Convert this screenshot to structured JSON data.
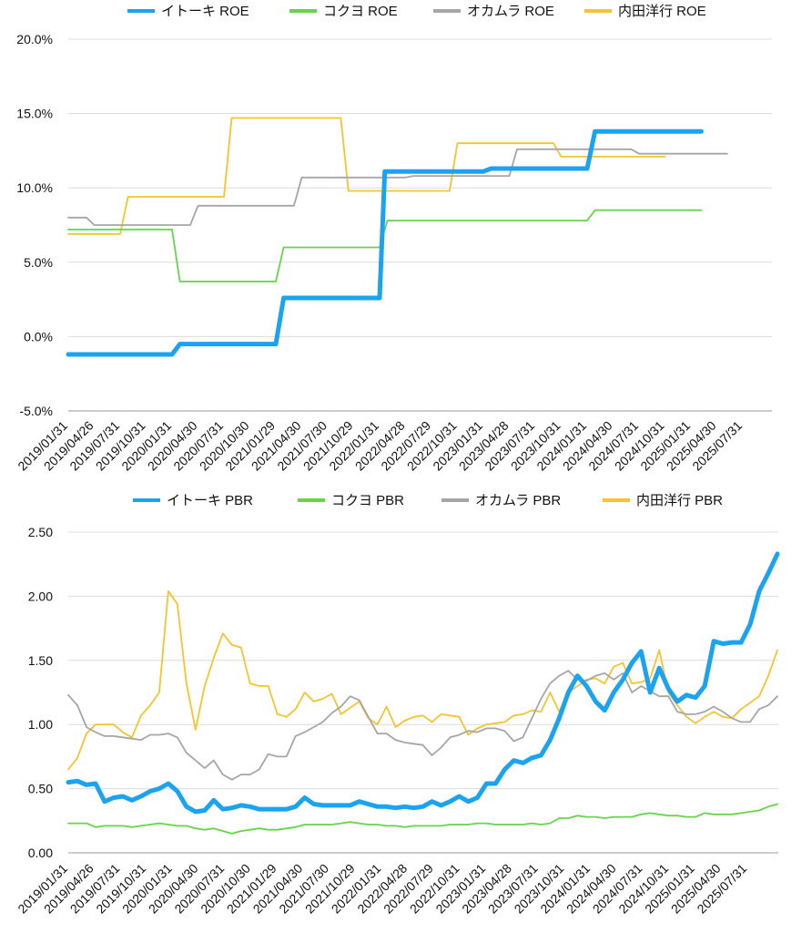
{
  "chart_data": [
    {
      "type": "line",
      "title": "",
      "xlabel": "",
      "ylabel": "",
      "ylim": [
        -5,
        20
      ],
      "y_unit": "percent",
      "y_ticks": [
        "20.0%",
        "15.0%",
        "10.0%",
        "5.0%",
        "0.0%",
        "-5.0%"
      ],
      "x_ticks": [
        "2019/01/31",
        "2019/04/26",
        "2019/07/31",
        "2019/10/31",
        "2020/01/31",
        "2020/04/30",
        "2020/07/31",
        "2020/10/30",
        "2021/01/29",
        "2021/04/30",
        "2021/07/30",
        "2021/10/29",
        "2022/01/31",
        "2022/04/28",
        "2022/07/29",
        "2022/10/31",
        "2023/01/31",
        "2023/04/28",
        "2023/07/31",
        "2023/10/31",
        "2024/01/31",
        "2024/04/30",
        "2024/07/31",
        "2024/10/31",
        "2025/01/31",
        "2025/04/30",
        "2025/07/31"
      ],
      "grid": "horizontal",
      "legend_position": "top",
      "series": [
        {
          "name": "イトーキ ROE",
          "color": "#1aa3f0",
          "width": 5,
          "points": [
            [
              0,
              -1.2
            ],
            [
              4,
              -1.2
            ],
            [
              4.3,
              -0.5
            ],
            [
              8,
              -0.5
            ],
            [
              8.3,
              2.6
            ],
            [
              12,
              2.6
            ],
            [
              12.2,
              11.1
            ],
            [
              16,
              11.1
            ],
            [
              16.3,
              11.3
            ],
            [
              20,
              11.3
            ],
            [
              20.3,
              13.8
            ],
            [
              24.4,
              13.8
            ]
          ]
        },
        {
          "name": "コクヨ ROE",
          "color": "#66d44c",
          "width": 1.8,
          "points": [
            [
              0,
              7.2
            ],
            [
              4,
              7.2
            ],
            [
              4.3,
              3.7
            ],
            [
              8,
              3.7
            ],
            [
              8.3,
              6.0
            ],
            [
              12,
              6.0
            ],
            [
              12.3,
              7.8
            ],
            [
              20,
              7.8
            ],
            [
              20.3,
              8.5
            ],
            [
              24.4,
              8.5
            ]
          ]
        },
        {
          "name": "オカムラ ROE",
          "color": "#a6a6a6",
          "width": 1.8,
          "points": [
            [
              0,
              8.0
            ],
            [
              0.7,
              8.0
            ],
            [
              1,
              7.5
            ],
            [
              4.7,
              7.5
            ],
            [
              5,
              8.8
            ],
            [
              8.7,
              8.8
            ],
            [
              9,
              10.7
            ],
            [
              13,
              10.7
            ],
            [
              13.3,
              10.8
            ],
            [
              17,
              10.8
            ],
            [
              17.3,
              12.6
            ],
            [
              21.7,
              12.6
            ],
            [
              22,
              12.3
            ],
            [
              25.4,
              12.3
            ]
          ]
        },
        {
          "name": "内田洋行 ROE",
          "color": "#f7c32e",
          "width": 1.8,
          "points": [
            [
              0,
              6.9
            ],
            [
              2,
              6.9
            ],
            [
              2.3,
              9.4
            ],
            [
              6,
              9.4
            ],
            [
              6.3,
              14.7
            ],
            [
              10.5,
              14.7
            ],
            [
              10.8,
              9.8
            ],
            [
              14.7,
              9.8
            ],
            [
              15,
              13.0
            ],
            [
              18.7,
              13.0
            ],
            [
              19,
              12.1
            ],
            [
              23,
              12.1
            ]
          ]
        }
      ]
    },
    {
      "type": "line",
      "title": "",
      "xlabel": "",
      "ylabel": "",
      "ylim": [
        0,
        2.5
      ],
      "y_ticks": [
        "2.50",
        "2.00",
        "1.50",
        "1.00",
        "0.50",
        "0.00"
      ],
      "x_ticks": [
        "2019/01/31",
        "2019/04/26",
        "2019/07/31",
        "2019/10/31",
        "2020/01/31",
        "2020/04/30",
        "2020/07/31",
        "2020/10/30",
        "2021/01/29",
        "2021/04/30",
        "2021/07/30",
        "2021/10/29",
        "2022/01/31",
        "2022/04/28",
        "2022/07/29",
        "2022/10/31",
        "2023/01/31",
        "2023/04/28",
        "2023/07/31",
        "2023/10/31",
        "2024/01/31",
        "2024/04/30",
        "2024/07/31",
        "2024/10/31",
        "2025/01/31",
        "2025/04/30",
        "2025/07/31"
      ],
      "grid": "horizontal",
      "legend_position": "top",
      "series": [
        {
          "name": "イトーキ PBR",
          "color": "#1aa3f0",
          "width": 5,
          "values": [
            0.55,
            0.56,
            0.53,
            0.54,
            0.4,
            0.43,
            0.44,
            0.41,
            0.44,
            0.48,
            0.5,
            0.54,
            0.48,
            0.36,
            0.32,
            0.33,
            0.41,
            0.34,
            0.35,
            0.37,
            0.36,
            0.34,
            0.34,
            0.34,
            0.34,
            0.36,
            0.43,
            0.38,
            0.37,
            0.37,
            0.37,
            0.37,
            0.4,
            0.38,
            0.36,
            0.36,
            0.35,
            0.36,
            0.35,
            0.36,
            0.4,
            0.37,
            0.4,
            0.44,
            0.4,
            0.43,
            0.54,
            0.54,
            0.65,
            0.72,
            0.7,
            0.74,
            0.76,
            0.88,
            1.05,
            1.25,
            1.38,
            1.3,
            1.18,
            1.11,
            1.25,
            1.35,
            1.48,
            1.57,
            1.25,
            1.44,
            1.28,
            1.18,
            1.23,
            1.21,
            1.3,
            1.65,
            1.63,
            1.64,
            1.64,
            1.78,
            2.04,
            2.18,
            2.33
          ]
        },
        {
          "name": "コクヨ PBR",
          "color": "#66d44c",
          "width": 1.8,
          "values": [
            0.23,
            0.23,
            0.23,
            0.2,
            0.21,
            0.21,
            0.21,
            0.2,
            0.21,
            0.22,
            0.23,
            0.22,
            0.21,
            0.21,
            0.19,
            0.18,
            0.19,
            0.17,
            0.15,
            0.17,
            0.18,
            0.19,
            0.18,
            0.18,
            0.19,
            0.2,
            0.22,
            0.22,
            0.22,
            0.22,
            0.23,
            0.24,
            0.23,
            0.22,
            0.22,
            0.21,
            0.21,
            0.2,
            0.21,
            0.21,
            0.21,
            0.21,
            0.22,
            0.22,
            0.22,
            0.23,
            0.23,
            0.22,
            0.22,
            0.22,
            0.22,
            0.23,
            0.22,
            0.23,
            0.27,
            0.27,
            0.29,
            0.28,
            0.28,
            0.27,
            0.28,
            0.28,
            0.28,
            0.3,
            0.31,
            0.3,
            0.29,
            0.29,
            0.28,
            0.28,
            0.31,
            0.3,
            0.3,
            0.3,
            0.31,
            0.32,
            0.33,
            0.36,
            0.38
          ]
        },
        {
          "name": "オカムラ PBR",
          "color": "#a6a6a6",
          "width": 1.8,
          "values": [
            1.23,
            1.15,
            0.98,
            0.94,
            0.91,
            0.91,
            0.9,
            0.89,
            0.88,
            0.92,
            0.92,
            0.93,
            0.9,
            0.78,
            0.72,
            0.66,
            0.72,
            0.61,
            0.57,
            0.61,
            0.61,
            0.65,
            0.77,
            0.75,
            0.75,
            0.91,
            0.94,
            0.98,
            1.02,
            1.09,
            1.14,
            1.22,
            1.19,
            1.06,
            0.93,
            0.93,
            0.88,
            0.86,
            0.85,
            0.84,
            0.76,
            0.82,
            0.9,
            0.92,
            0.95,
            0.94,
            0.97,
            0.97,
            0.95,
            0.87,
            0.9,
            1.05,
            1.2,
            1.32,
            1.38,
            1.42,
            1.35,
            1.34,
            1.38,
            1.4,
            1.35,
            1.4,
            1.25,
            1.3,
            1.26,
            1.22,
            1.22,
            1.1,
            1.08,
            1.08,
            1.1,
            1.14,
            1.1,
            1.05,
            1.02,
            1.02,
            1.12,
            1.15,
            1.22
          ]
        },
        {
          "name": "内田洋行 PBR",
          "color": "#f7c32e",
          "width": 1.8,
          "values": [
            0.65,
            0.74,
            0.93,
            1.0,
            1.0,
            1.0,
            0.94,
            0.9,
            1.07,
            1.15,
            1.25,
            2.04,
            1.94,
            1.32,
            0.96,
            1.3,
            1.52,
            1.71,
            1.62,
            1.6,
            1.32,
            1.3,
            1.3,
            1.08,
            1.06,
            1.12,
            1.25,
            1.18,
            1.2,
            1.24,
            1.08,
            1.13,
            1.18,
            1.05,
            1.0,
            1.14,
            0.98,
            1.03,
            1.06,
            1.07,
            1.02,
            1.08,
            1.07,
            1.06,
            0.92,
            0.97,
            1.0,
            1.01,
            1.02,
            1.07,
            1.08,
            1.11,
            1.1,
            1.25,
            1.1,
            1.25,
            1.3,
            1.35,
            1.36,
            1.32,
            1.45,
            1.48,
            1.32,
            1.33,
            1.36,
            1.58,
            1.25,
            1.15,
            1.06,
            1.01,
            1.06,
            1.1,
            1.06,
            1.05,
            1.12,
            1.17,
            1.22,
            1.38,
            1.58
          ]
        }
      ]
    }
  ]
}
